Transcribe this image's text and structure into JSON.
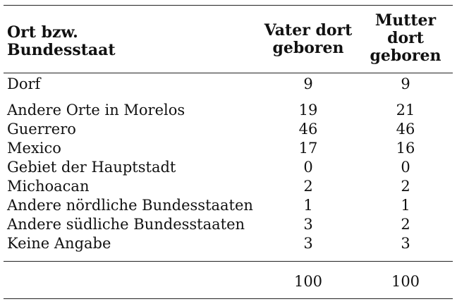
{
  "header": {
    "col1_line1": "Ort bzw.",
    "col1_line2": "Bundesstaat",
    "col2_line1": "Vater dort",
    "col2_line2": "geboren",
    "col3_line1": "Mutter",
    "col3_line2": "dort",
    "col3_line3": "geboren"
  },
  "rows": [
    {
      "location": "Dorf",
      "vater": "9",
      "mutter": "9"
    },
    {
      "location": "Andere Orte in Morelos",
      "vater": "19",
      "mutter": "21"
    },
    {
      "location": "Guerrero",
      "vater": "46",
      "mutter": "46"
    },
    {
      "location": "Mexico",
      "vater": "17",
      "mutter": "16"
    },
    {
      "location": "Gebiet der Hauptstadt",
      "vater": "0",
      "mutter": "0"
    },
    {
      "location": "Michoacan",
      "vater": "2",
      "mutter": "2"
    },
    {
      "location": "Andere nördliche Bundesstaaten",
      "vater": "1",
      "mutter": "1"
    },
    {
      "location": "Andere südliche Bundesstaaten",
      "vater": "3",
      "mutter": "2"
    },
    {
      "location": "Keine Angabe",
      "vater": "3",
      "mutter": "3"
    }
  ],
  "totals": {
    "vater": "100",
    "mutter": "100"
  }
}
